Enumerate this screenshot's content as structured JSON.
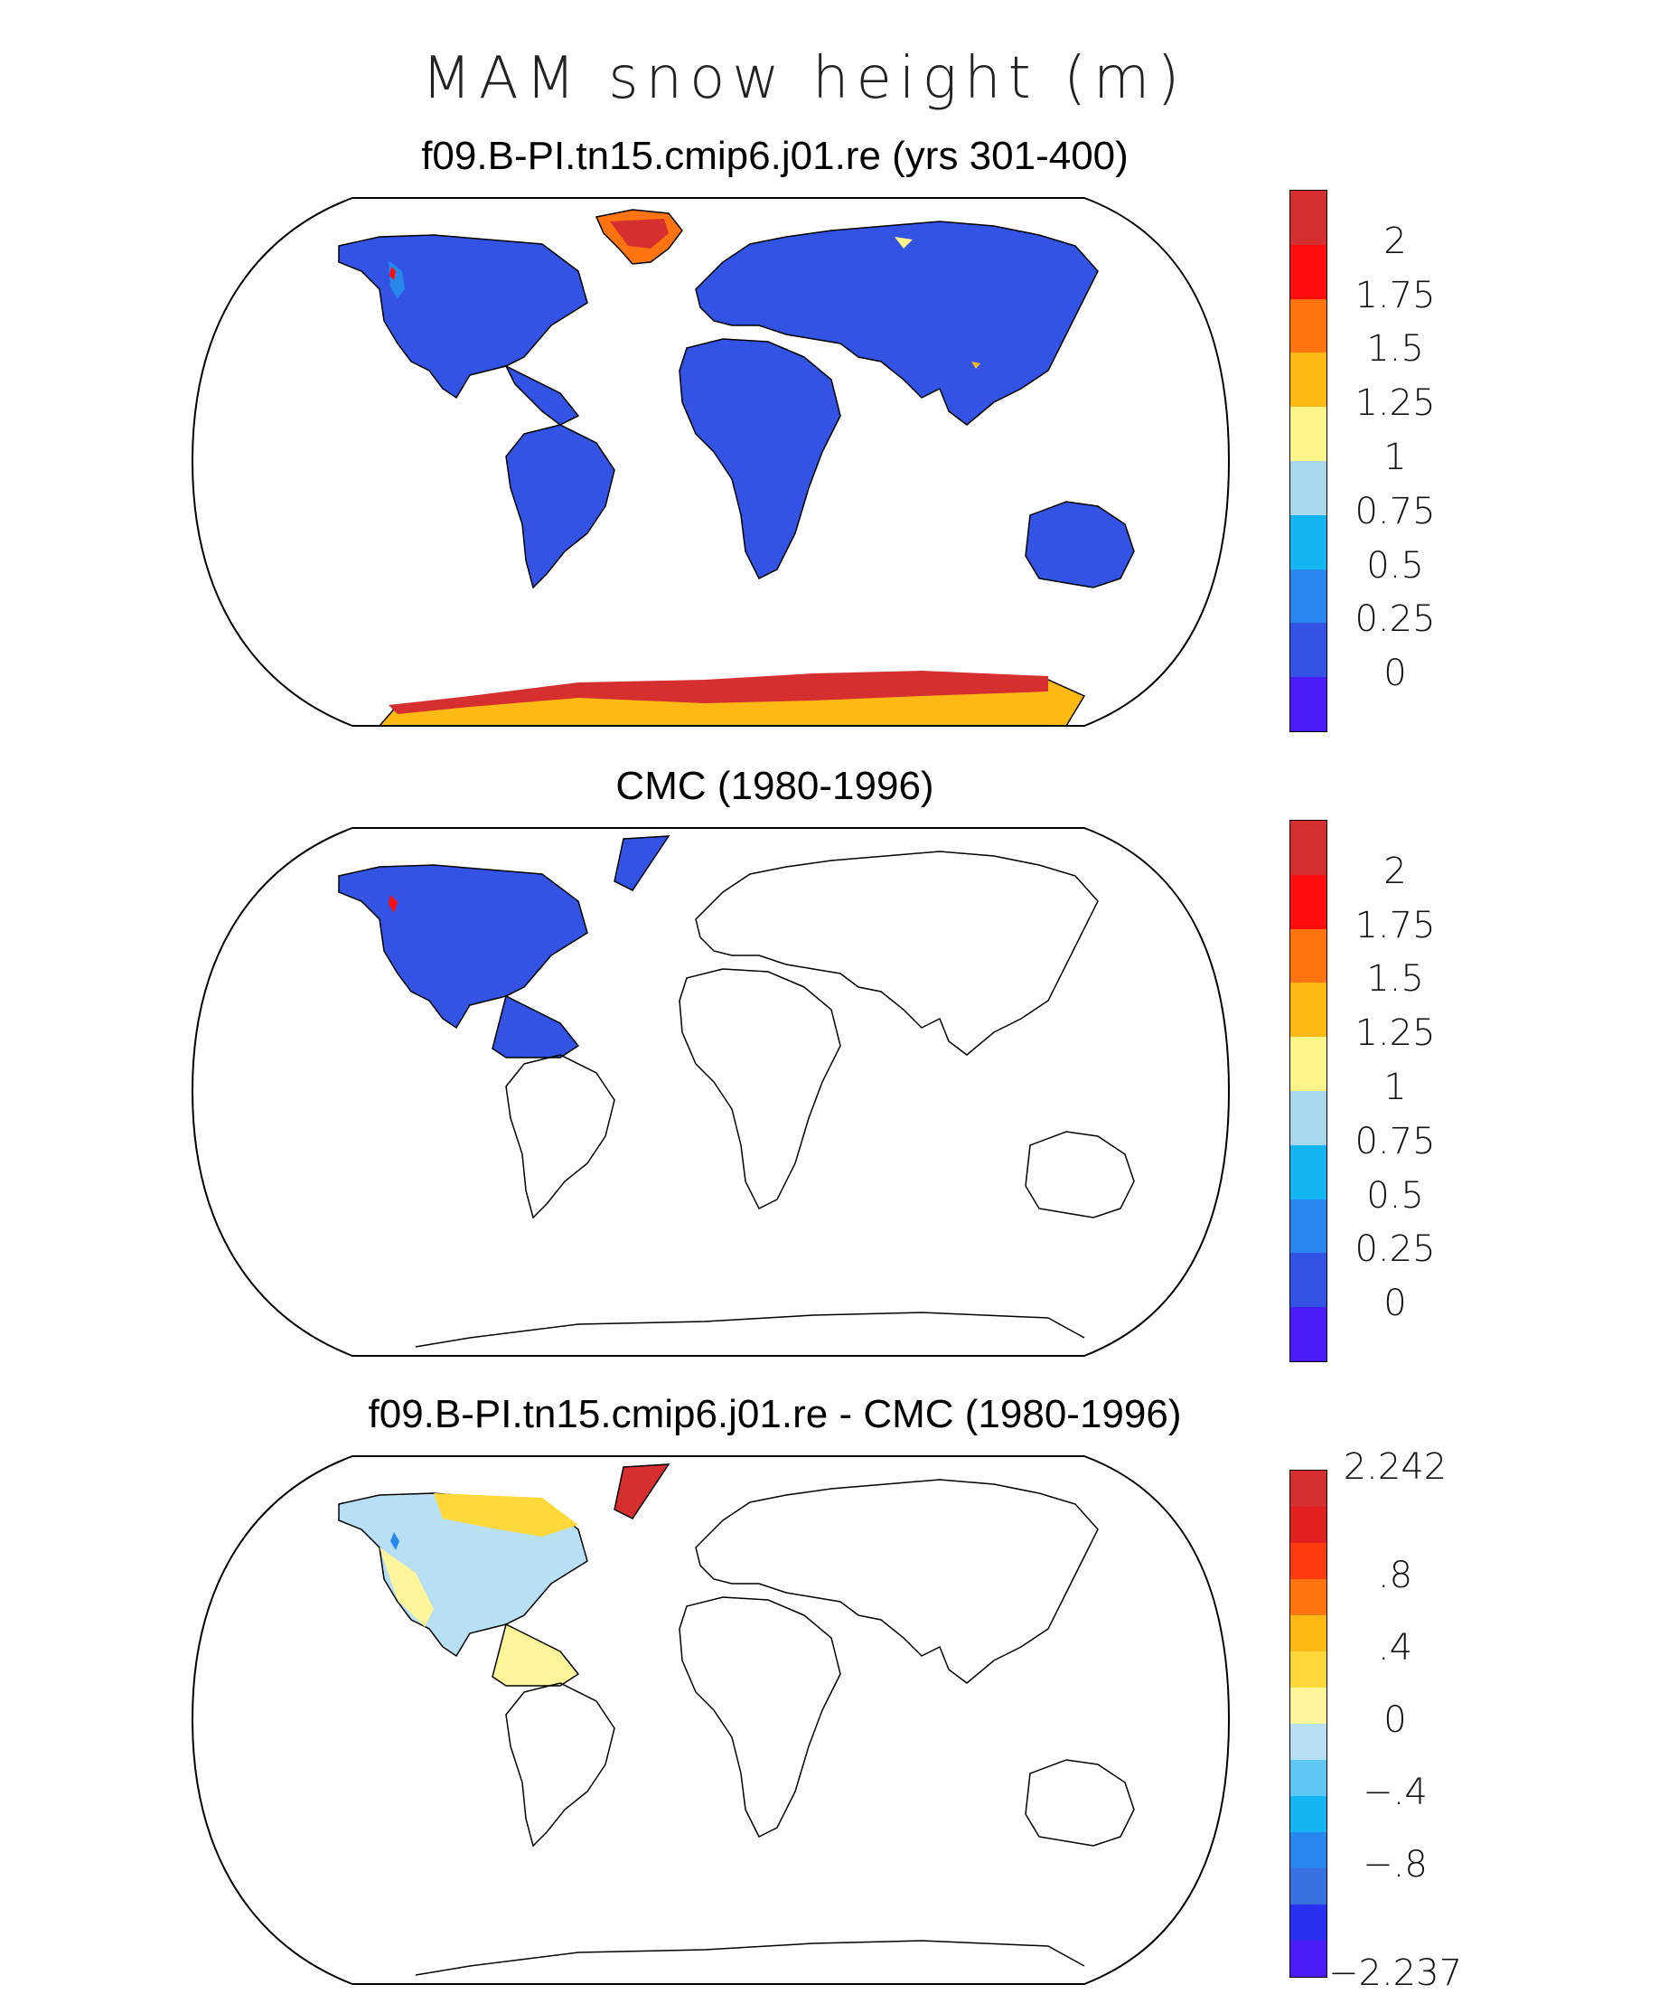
{
  "figure": {
    "title": "MAM snow height (m)"
  },
  "panels": [
    {
      "title": "f09.B-PI.tn15.cmip6.j01.re (yrs 301-400)",
      "colorbar": {
        "colors": [
          "#d62f2f",
          "#ff0d0d",
          "#ff7410",
          "#ffb915",
          "#fff58a",
          "#a8d8f0",
          "#14b6f2",
          "#2887ec",
          "#3253e4",
          "#4a1cf6"
        ],
        "labels": [
          "2",
          "1.75",
          "1.5",
          "1.25",
          "1",
          "0.75",
          "0.5",
          "0.25",
          "0"
        ]
      }
    },
    {
      "title": "CMC (1980-1996)",
      "colorbar": {
        "colors": [
          "#d62f2f",
          "#ff0d0d",
          "#ff7410",
          "#ffb915",
          "#fff58a",
          "#a8d8f0",
          "#14b6f2",
          "#2887ec",
          "#3253e4",
          "#4a1cf6"
        ],
        "labels": [
          "2",
          "1.75",
          "1.5",
          "1.25",
          "1",
          "0.75",
          "0.5",
          "0.25",
          "0"
        ]
      }
    },
    {
      "title": "f09.B-PI.tn15.cmip6.j01.re - CMC (1980-1996)",
      "colorbar": {
        "colors": [
          "#d62f2f",
          "#e0201e",
          "#ff3b10",
          "#ff7410",
          "#ffb915",
          "#ffd93a",
          "#fff59a",
          "#b8e0f4",
          "#5ec6f2",
          "#14b6f2",
          "#2887ec",
          "#3870e0",
          "#2a2ef0",
          "#4a1cf6"
        ],
        "labels": [
          "2.242",
          ".8",
          ".4",
          "0",
          "−.4",
          "−.8",
          "−2.237"
        ]
      }
    }
  ]
}
